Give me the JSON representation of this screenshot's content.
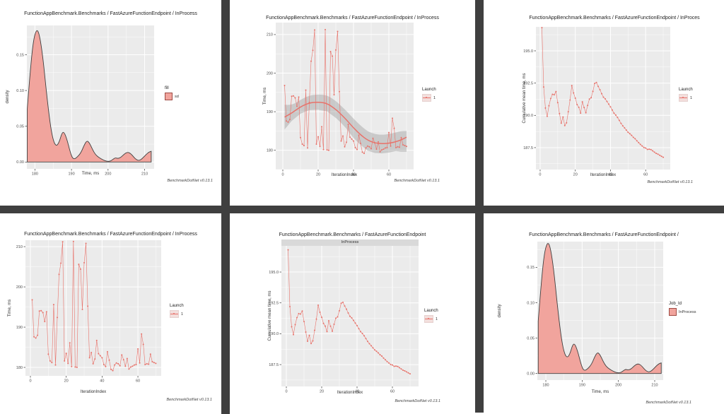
{
  "page": {
    "background": "#ffffff",
    "divider_color": "#3f3f3f"
  },
  "footer_note": "BenchmarkDotNet v0.13.1",
  "colors": {
    "accent": "#e8726a",
    "density_fill": "#f1a49d",
    "density_stroke": "#404040",
    "panel_bg": "#ebebeb",
    "grid_major": "#ffffff",
    "grid_minor": "#f7f7f7",
    "smooth_band": "#9c9c9c",
    "tick_text": "#4d4d4d",
    "strip_bg": "#d9d9d9"
  },
  "chart_data": [
    {
      "id": "top-left-density",
      "type": "area",
      "title": "FunctionAppBenchmark.Benchmarks / FastAzureFunctionEndpoint / InProcess",
      "xlabel": "Time, ms",
      "ylabel": "density",
      "xticks": [
        "180",
        "190",
        "200",
        "210"
      ],
      "yticks": [
        "0.00",
        "0.05",
        "0.10",
        "0.15"
      ],
      "xlim": [
        177.8,
        212.6
      ],
      "ylim": [
        0,
        0.191
      ],
      "legend_position": "right",
      "grid": true,
      "legend": {
        "title": "fill",
        "items": [
          {
            "label": "sd",
            "key": "box"
          }
        ]
      },
      "density_points": [
        [
          177.9,
          0.074
        ],
        [
          178.6,
          0.12
        ],
        [
          179.5,
          0.168
        ],
        [
          180.4,
          0.186
        ],
        [
          181.2,
          0.18
        ],
        [
          182.2,
          0.146
        ],
        [
          183.2,
          0.095
        ],
        [
          184.2,
          0.052
        ],
        [
          185.0,
          0.03
        ],
        [
          185.8,
          0.022
        ],
        [
          186.6,
          0.027
        ],
        [
          187.4,
          0.041
        ],
        [
          188.0,
          0.042
        ],
        [
          188.8,
          0.031
        ],
        [
          189.6,
          0.015
        ],
        [
          190.2,
          0.006
        ],
        [
          190.8,
          0.004
        ],
        [
          191.6,
          0.007
        ],
        [
          192.6,
          0.013
        ],
        [
          193.5,
          0.024
        ],
        [
          194.2,
          0.03
        ],
        [
          194.9,
          0.027
        ],
        [
          195.8,
          0.017
        ],
        [
          196.6,
          0.01
        ],
        [
          197.6,
          0.006
        ],
        [
          198.6,
          0.003
        ],
        [
          199.6,
          0.001
        ],
        [
          200.6,
          0.001
        ],
        [
          201.4,
          0.004
        ],
        [
          202.0,
          0.006
        ],
        [
          202.6,
          0.005
        ],
        [
          203.4,
          0.006
        ],
        [
          204.4,
          0.011
        ],
        [
          205.3,
          0.014
        ],
        [
          206.2,
          0.012
        ],
        [
          207.0,
          0.007
        ],
        [
          207.8,
          0.003
        ],
        [
          208.6,
          0.002
        ],
        [
          209.4,
          0.005
        ],
        [
          210.3,
          0.01
        ],
        [
          211.2,
          0.014
        ],
        [
          211.8,
          0.015
        ]
      ]
    },
    {
      "id": "top-middle-timeline-smooth",
      "type": "scatter-smooth",
      "title": "FunctionAppBenchmark.Benchmarks / FastAzureFunctionEndpoint / InProcess",
      "xlabel": "IterationIndex",
      "ylabel": "Time, ms",
      "xticks": [
        "0",
        "20",
        "40",
        "60"
      ],
      "yticks": [
        "180",
        "190",
        "200",
        "210"
      ],
      "xlim": [
        -4,
        74
      ],
      "ylim": [
        175,
        213.1
      ],
      "legend_position": "right",
      "grid": true,
      "legend": {
        "title": "Launch",
        "items": [
          {
            "label": "1",
            "key": "line"
          }
        ]
      },
      "series": [
        {
          "name": "1",
          "x_start": 1,
          "values": [
            196.8,
            187.6,
            187.3,
            188.0,
            194.0,
            194.1,
            193.6,
            191.4,
            193.8,
            183.3,
            181.6,
            181.2,
            195.6,
            180.6,
            192.4,
            203.1,
            205.9,
            211.2,
            181.6,
            183.5,
            181.0,
            186.1,
            180.2,
            211.3,
            180.1,
            180.0,
            205.6,
            204.4,
            194.4,
            206.0,
            210.8,
            195.2,
            182.4,
            183.7,
            180.9,
            182.1,
            186.7,
            183.4,
            182.9,
            182.4,
            180.7,
            180.2,
            183.9,
            181.8,
            179.5,
            179.2,
            180.6,
            181.1,
            180.9,
            180.4,
            183.1,
            181.9,
            180.3,
            182.2,
            179.6,
            180.1,
            180.3,
            180.6,
            180.7,
            184.6,
            181.1,
            188.3,
            185.7,
            180.7,
            180.9,
            180.8,
            183.3,
            181.4,
            181.2,
            181.0
          ]
        }
      ],
      "smooth": {
        "x": [
          1,
          5,
          10,
          15,
          20,
          25,
          30,
          33,
          36,
          40,
          44,
          48,
          52,
          56,
          60,
          64,
          67,
          70
        ],
        "y": [
          188.6,
          189.6,
          191.3,
          192.3,
          192.5,
          192.2,
          190.6,
          189.3,
          187.9,
          185.8,
          184.0,
          182.6,
          181.9,
          181.7,
          181.8,
          182.2,
          182.7,
          183.4
        ],
        "upper": [
          191.8,
          191.6,
          193.1,
          194.2,
          194.5,
          194.3,
          192.8,
          191.5,
          190.2,
          188.2,
          186.4,
          184.9,
          184.2,
          184.0,
          184.2,
          184.6,
          185.0,
          185.0
        ],
        "lower": [
          185.4,
          187.6,
          189.5,
          190.4,
          190.5,
          190.1,
          188.4,
          187.1,
          185.6,
          183.2,
          181.4,
          179.9,
          179.3,
          179.2,
          179.4,
          179.8,
          179.6,
          179.6
        ]
      }
    },
    {
      "id": "top-right-cumulative-mean",
      "type": "line",
      "title": "FunctionAppBenchmark.Benchmarks / FastAzureFunctionEndpoint / InProces",
      "xlabel": "IterationIndex",
      "ylabel": "Cumulative mean time, ms",
      "xticks": [
        "0",
        "20",
        "40",
        "60"
      ],
      "yticks": [
        "187.5",
        "190.0",
        "192.5",
        "195.0"
      ],
      "xlim": [
        -2.4,
        74
      ],
      "ylim": [
        185.8,
        196.86
      ],
      "legend_position": "right",
      "grid": true,
      "legend": {
        "title": "Launch",
        "items": [
          {
            "label": "1",
            "key": "line"
          }
        ]
      },
      "series": [
        {
          "name": "1",
          "x_start": 1,
          "values": [
            196.8,
            192.2,
            190.57,
            189.93,
            190.74,
            191.3,
            191.63,
            191.6,
            191.84,
            190.99,
            190.14,
            189.39,
            189.87,
            189.21,
            189.42,
            190.28,
            191.19,
            192.31,
            191.74,
            191.33,
            190.84,
            190.62,
            190.17,
            191.05,
            190.61,
            190.2,
            190.77,
            191.26,
            191.37,
            191.86,
            192.47,
            192.55,
            192.25,
            191.99,
            191.68,
            191.41,
            191.28,
            191.08,
            190.87,
            190.66,
            190.41,
            190.17,
            190.02,
            189.84,
            189.61,
            189.38,
            189.19,
            189.03,
            188.86,
            188.69,
            188.58,
            188.45,
            188.3,
            188.19,
            188.03,
            187.89,
            187.75,
            187.63,
            187.51,
            187.47,
            187.36,
            187.38,
            187.35,
            187.25,
            187.15,
            187.05,
            186.99,
            186.91,
            186.83,
            186.75
          ]
        }
      ]
    },
    {
      "id": "bottom-left-timeline",
      "type": "line",
      "title": "FunctionAppBenchmark.Benchmarks / FastAzureFunctionEndpoint / InProcess",
      "xlabel": "IterationIndex",
      "ylabel": "Time, ms",
      "xticks": [
        "0",
        "20",
        "40",
        "60"
      ],
      "yticks": [
        "180",
        "190",
        "200",
        "210"
      ],
      "xlim": [
        -2.76,
        73
      ],
      "ylim": [
        177.9,
        211.6
      ],
      "legend_position": "right",
      "grid": true,
      "legend": {
        "title": "Launch",
        "items": [
          {
            "label": "1",
            "key": "line"
          }
        ]
      },
      "series": [
        {
          "name": "1",
          "x_start": 1,
          "values": [
            196.8,
            187.6,
            187.3,
            188.0,
            194.0,
            194.1,
            193.6,
            191.4,
            193.8,
            183.3,
            181.6,
            181.2,
            195.6,
            180.6,
            192.4,
            203.1,
            205.9,
            211.2,
            181.6,
            183.5,
            181.0,
            186.1,
            180.2,
            211.3,
            180.1,
            180.0,
            205.6,
            204.4,
            194.4,
            206.0,
            210.8,
            195.2,
            182.4,
            183.7,
            180.9,
            182.1,
            186.7,
            183.4,
            182.9,
            182.4,
            180.7,
            180.2,
            183.9,
            181.8,
            179.5,
            179.2,
            180.6,
            181.1,
            180.9,
            180.4,
            183.1,
            181.9,
            180.3,
            182.2,
            179.6,
            180.1,
            180.3,
            180.6,
            180.7,
            184.6,
            181.1,
            188.3,
            185.7,
            180.7,
            180.9,
            180.8,
            183.3,
            181.4,
            181.2,
            181.0
          ]
        }
      ]
    },
    {
      "id": "bottom-middle-cumulative-mean-facet",
      "type": "line",
      "title": "FunctionAppBenchmark.Benchmarks / FastAzureFunctionEndpoint",
      "facet": "InProcess",
      "xlabel": "IterationIndex",
      "ylabel": "Cumulative mean time, ms",
      "xticks": [
        "0",
        "20",
        "40",
        "60"
      ],
      "yticks": [
        "187.5",
        "190.0",
        "192.5",
        "195.0"
      ],
      "xlim": [
        -2.8,
        74.8
      ],
      "ylim": [
        185.73,
        197.12
      ],
      "legend_position": "right",
      "grid": true,
      "legend": {
        "title": "Launch",
        "items": [
          {
            "label": "1",
            "key": "line"
          }
        ]
      },
      "series": [
        {
          "name": "1",
          "x_start": 1,
          "values": [
            196.8,
            192.2,
            190.57,
            189.93,
            190.74,
            191.3,
            191.63,
            191.6,
            191.84,
            190.99,
            190.14,
            189.39,
            189.87,
            189.21,
            189.42,
            190.28,
            191.19,
            192.31,
            191.74,
            191.33,
            190.84,
            190.62,
            190.17,
            191.05,
            190.61,
            190.2,
            190.77,
            191.26,
            191.37,
            191.86,
            192.47,
            192.55,
            192.25,
            191.99,
            191.68,
            191.41,
            191.28,
            191.08,
            190.87,
            190.66,
            190.41,
            190.17,
            190.02,
            189.84,
            189.61,
            189.38,
            189.19,
            189.03,
            188.86,
            188.69,
            188.58,
            188.45,
            188.3,
            188.19,
            188.03,
            187.89,
            187.75,
            187.63,
            187.51,
            187.47,
            187.36,
            187.38,
            187.35,
            187.25,
            187.15,
            187.05,
            186.99,
            186.91,
            186.83,
            186.75
          ]
        }
      ]
    },
    {
      "id": "bottom-right-density",
      "type": "area",
      "title": "FunctionAppBenchmark.Benchmarks / FastAzureFunctionEndpoint /",
      "xlabel": "Time, ms",
      "ylabel": "density",
      "xticks": [
        "180",
        "190",
        "200",
        "210"
      ],
      "yticks": [
        "0.00",
        "0.05",
        "0.10",
        "0.15"
      ],
      "xlim": [
        177.66,
        212.34
      ],
      "ylim": [
        0,
        0.1863
      ],
      "legend_position": "right",
      "grid": true,
      "legend": {
        "title": "Job_Id",
        "items": [
          {
            "label": "InProcess",
            "key": "box"
          }
        ]
      },
      "density_points": [
        [
          177.9,
          0.074
        ],
        [
          178.6,
          0.12
        ],
        [
          179.5,
          0.168
        ],
        [
          180.4,
          0.186
        ],
        [
          181.2,
          0.18
        ],
        [
          182.2,
          0.146
        ],
        [
          183.2,
          0.095
        ],
        [
          184.2,
          0.052
        ],
        [
          185.0,
          0.03
        ],
        [
          185.8,
          0.022
        ],
        [
          186.6,
          0.027
        ],
        [
          187.4,
          0.041
        ],
        [
          188.0,
          0.042
        ],
        [
          188.8,
          0.031
        ],
        [
          189.6,
          0.015
        ],
        [
          190.2,
          0.006
        ],
        [
          190.8,
          0.004
        ],
        [
          191.6,
          0.007
        ],
        [
          192.6,
          0.013
        ],
        [
          193.5,
          0.024
        ],
        [
          194.2,
          0.03
        ],
        [
          194.9,
          0.027
        ],
        [
          195.8,
          0.017
        ],
        [
          196.6,
          0.01
        ],
        [
          197.6,
          0.006
        ],
        [
          198.6,
          0.003
        ],
        [
          199.6,
          0.001
        ],
        [
          200.6,
          0.001
        ],
        [
          201.4,
          0.004
        ],
        [
          202.0,
          0.006
        ],
        [
          202.6,
          0.005
        ],
        [
          203.4,
          0.006
        ],
        [
          204.4,
          0.011
        ],
        [
          205.3,
          0.014
        ],
        [
          206.2,
          0.012
        ],
        [
          207.0,
          0.007
        ],
        [
          207.8,
          0.003
        ],
        [
          208.6,
          0.002
        ],
        [
          209.4,
          0.005
        ],
        [
          210.3,
          0.01
        ],
        [
          211.2,
          0.014
        ],
        [
          211.8,
          0.015
        ]
      ]
    }
  ]
}
